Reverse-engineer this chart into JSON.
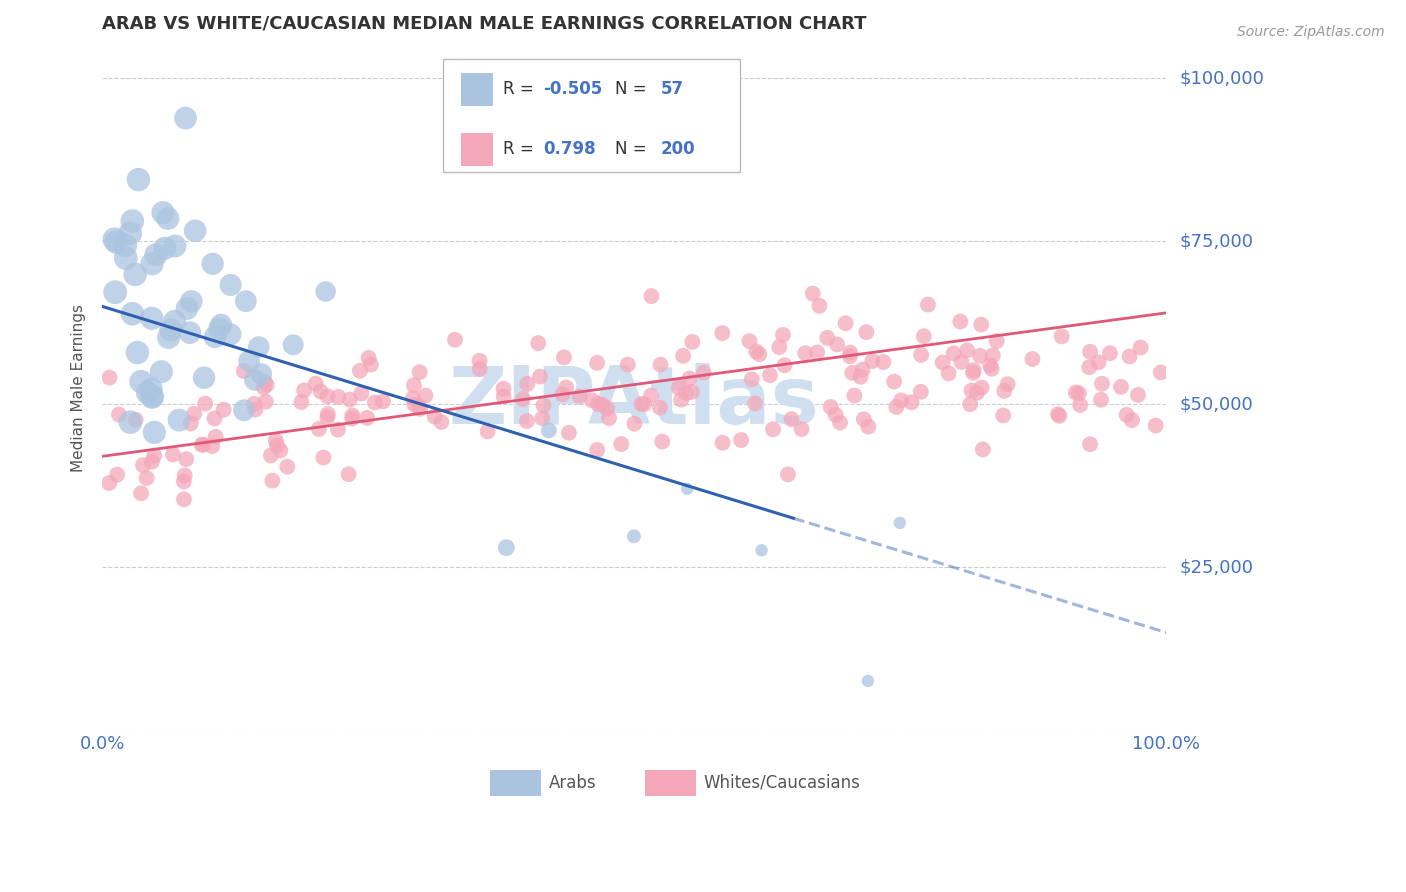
{
  "title": "ARAB VS WHITE/CAUCASIAN MEDIAN MALE EARNINGS CORRELATION CHART",
  "source_text": "Source: ZipAtlas.com",
  "ylabel": "Median Male Earnings",
  "xlim": [
    0,
    1.0
  ],
  "ylim": [
    0,
    105000
  ],
  "title_color": "#333333",
  "axis_color": "#4472c4",
  "background_color": "#ffffff",
  "grid_color": "#cccccc",
  "arab_color": "#aac4e0",
  "white_color": "#f4a7b9",
  "arab_line_color": "#3060b0",
  "white_line_color": "#e05878",
  "watermark_color": "#d0dff0",
  "arab_seed": 42,
  "white_seed": 99
}
